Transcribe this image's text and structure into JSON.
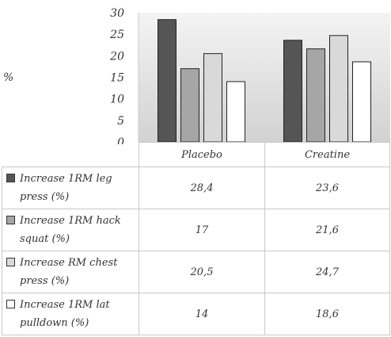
{
  "chart_data": {
    "type": "bar",
    "categories": [
      "Placebo",
      "Creatine"
    ],
    "ylabel": "%",
    "ylim": [
      0,
      30
    ],
    "yticks": [
      0,
      5,
      10,
      15,
      20,
      25,
      30
    ],
    "grid": false,
    "legend": "table-left",
    "series": [
      {
        "name": "Increase 1RM leg press (%)",
        "values": [
          28.4,
          23.6
        ],
        "display": [
          "28,4",
          "23,6"
        ],
        "color": "#555555"
      },
      {
        "name": "Increase 1RM hack squat (%)",
        "values": [
          17,
          21.6
        ],
        "display": [
          "17",
          "21,6"
        ],
        "color": "#a6a6a6"
      },
      {
        "name": "Increase RM chest press (%)",
        "values": [
          20.5,
          24.7
        ],
        "display": [
          "20,5",
          "24,7"
        ],
        "color": "#d9d9d9"
      },
      {
        "name": "Increase 1RM lat pulldown (%)",
        "values": [
          14,
          18.6
        ],
        "display": [
          "14",
          "18,6"
        ],
        "color": "#ffffff"
      }
    ]
  }
}
